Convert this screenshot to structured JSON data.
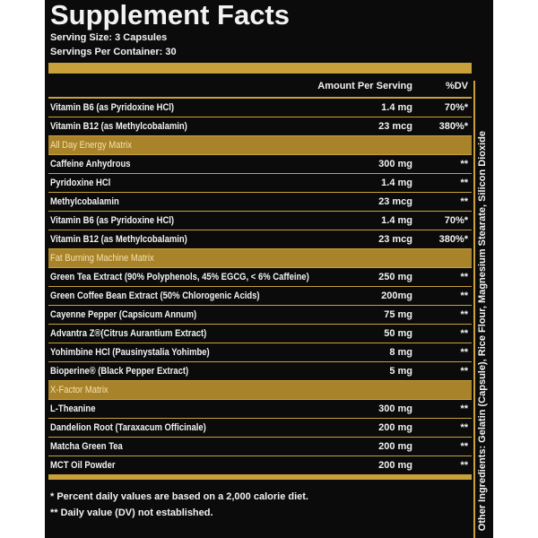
{
  "header": {
    "title": "Supplement Facts",
    "serving_size": "Serving Size: 3 Capsules",
    "servings_per_container": "Servings Per Container: 30"
  },
  "columns": [
    "Amount Per Serving",
    "%DV"
  ],
  "rows": [
    [
      "Vitamin B6 (as Pyridoxine HCl)",
      "1.4 mg",
      "70%*"
    ],
    [
      "Vitamin B12 (as Methylcobalamin)",
      "23 mcg",
      "380%*"
    ]
  ],
  "groups": [
    {
      "name": "All Day Energy Matrix",
      "rows": [
        [
          "Caffeine Anhydrous",
          "300 mg",
          "**"
        ],
        [
          "Pyridoxine HCl",
          "1.4 mg",
          "**"
        ],
        [
          "Methylcobalamin",
          "23 mcg",
          "**"
        ],
        [
          "Vitamin B6 (as Pyridoxine HCl)",
          "1.4 mg",
          "70%*"
        ],
        [
          "Vitamin B12 (as Methylcobalamin)",
          "23 mcg",
          "380%*"
        ]
      ]
    },
    {
      "name": "Fat Burning Machine Matrix",
      "rows": [
        [
          "Green Tea Extract (90% Polyphenols, 45% EGCG, < 6% Caffeine)",
          "250 mg",
          "**"
        ],
        [
          "Green Coffee Bean Extract (50% Chlorogenic Acids)",
          "200mg",
          "**"
        ],
        [
          "Cayenne Pepper (Capsicum Annum)",
          "75 mg",
          "**"
        ],
        [
          "Advantra Z®(Citrus Aurantium Extract)",
          "50 mg",
          "**"
        ],
        [
          "Yohimbine HCl (Pausinystalia Yohimbe)",
          "8 mg",
          "**"
        ],
        [
          "Bioperine® (Black Pepper Extract)",
          "5 mg",
          "**"
        ]
      ]
    },
    {
      "name": "X-Factor Matrix",
      "rows": [
        [
          "L-Theanine",
          "300 mg",
          "**"
        ],
        [
          "Dandelion Root (Taraxacum Officinale)",
          "200 mg",
          "**"
        ],
        [
          "Matcha Green Tea",
          "200 mg",
          "**"
        ],
        [
          "MCT Oil Powder",
          "200 mg",
          "**"
        ]
      ]
    }
  ],
  "footnotes": [
    "* Percent daily values are based on a 2,000 calorie diet.",
    "** Daily value (DV) not established."
  ],
  "other_ingredients": "Other Ingredients: Gelatin (Capsule), Rice Flour, Magnesium Stearate, Silicon Dioxide"
}
